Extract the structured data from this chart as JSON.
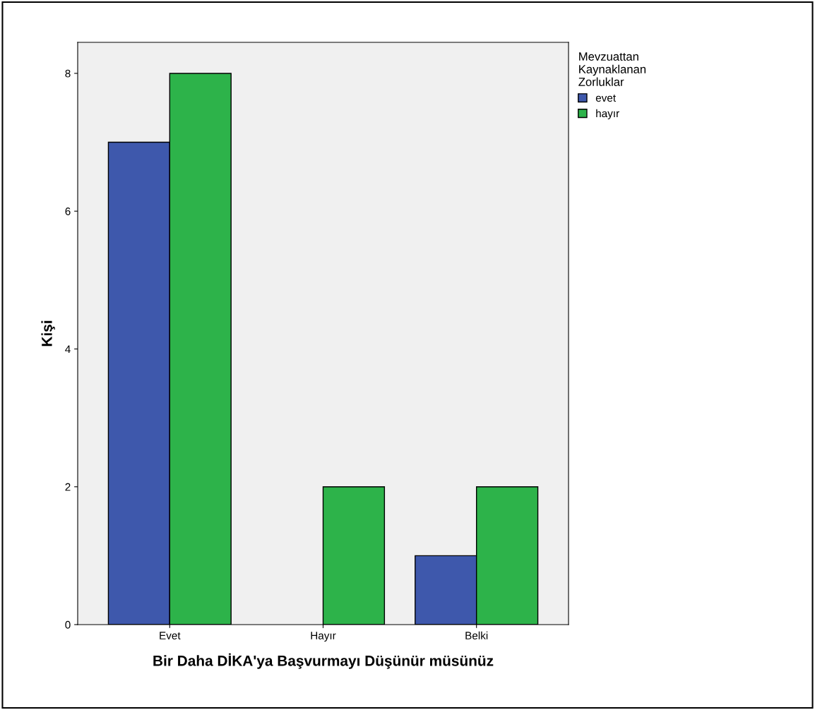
{
  "chart_data": {
    "type": "bar",
    "xlabel": "Bir Daha DİKA'ya Başvurmayı Düşünür müsünüz",
    "ylabel": "Kişi",
    "legend_title": "Mevzuattan\nKaynaklanan\nZorluklar",
    "categories": [
      "Evet",
      "Hayır",
      "Belki"
    ],
    "series": [
      {
        "name": "evet",
        "color": "#3e58ac",
        "values": [
          7,
          0,
          1
        ]
      },
      {
        "name": "hayır",
        "color": "#2db34a",
        "values": [
          8,
          2,
          2
        ]
      }
    ],
    "ylim": [
      0,
      8.45
    ],
    "yticks": [
      0,
      2,
      4,
      6,
      8
    ],
    "grid": false,
    "legend": "top right"
  }
}
